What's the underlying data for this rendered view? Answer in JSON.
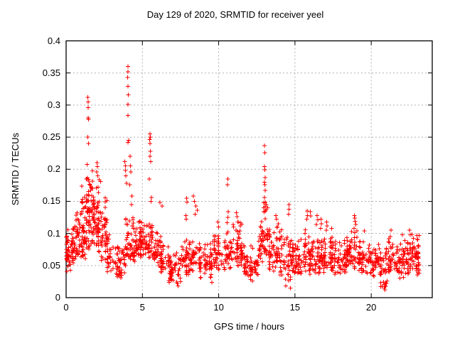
{
  "chart_data": {
    "type": "scatter",
    "title": "Day 129 of 2020, SRMTID for receiver yeel",
    "xlabel": "GPS time / hours",
    "ylabel": "SRMTID / TECUs",
    "xlim": [
      0,
      24
    ],
    "ylim": [
      0,
      0.4
    ],
    "xticks": [
      0,
      5,
      10,
      15,
      20
    ],
    "xtick_labels": [
      "0",
      "5",
      "10",
      "15",
      "20"
    ],
    "yticks": [
      0,
      0.05,
      0.1,
      0.15,
      0.2,
      0.25,
      0.3,
      0.35,
      0.4
    ],
    "ytick_labels": [
      "0",
      "0.05",
      "0.1",
      "0.15",
      "0.2",
      "0.25",
      "0.3",
      "0.35",
      "0.4"
    ],
    "grid": true,
    "grid_style": "dotted",
    "legend": "none",
    "marker": "plus",
    "marker_color": "#ff0000",
    "axis_color": "#000000",
    "grid_color": "#b0b0b0",
    "data_extent_hours": [
      0.02,
      23.15
    ],
    "seed": 1290520,
    "n_points_estimate": 1930,
    "density_profile": {
      "description": "Envelope of the dense scatter read from the plot: bins of [x_start_hour, x_end_hour, point_count, y_min_TECU, y_max_TECU]; baseline sits near 0.04-0.09 TECUs all day with activity peaks in hours 1-2 and around 4, 5.5, 13.",
      "bins": [
        [
          0.02,
          0.3,
          35,
          0.032,
          0.115
        ],
        [
          0.3,
          0.6,
          30,
          0.048,
          0.12
        ],
        [
          0.6,
          1.0,
          38,
          0.055,
          0.13
        ],
        [
          1.0,
          1.3,
          42,
          0.06,
          0.175
        ],
        [
          1.3,
          1.6,
          48,
          0.07,
          0.21
        ],
        [
          1.6,
          2.0,
          48,
          0.07,
          0.2
        ],
        [
          2.0,
          2.3,
          40,
          0.06,
          0.185
        ],
        [
          2.3,
          2.7,
          40,
          0.05,
          0.16
        ],
        [
          2.7,
          3.1,
          28,
          0.03,
          0.1
        ],
        [
          3.1,
          3.5,
          25,
          0.025,
          0.08
        ],
        [
          3.5,
          3.9,
          28,
          0.028,
          0.095
        ],
        [
          3.9,
          4.4,
          42,
          0.05,
          0.13
        ],
        [
          4.4,
          4.8,
          36,
          0.055,
          0.12
        ],
        [
          4.8,
          5.2,
          42,
          0.06,
          0.125
        ],
        [
          5.2,
          5.7,
          42,
          0.06,
          0.12
        ],
        [
          5.7,
          6.2,
          36,
          0.045,
          0.105
        ],
        [
          6.2,
          6.7,
          36,
          0.035,
          0.085
        ],
        [
          6.7,
          7.5,
          56,
          0.02,
          0.075
        ],
        [
          7.5,
          8.1,
          46,
          0.035,
          0.09
        ],
        [
          8.1,
          8.8,
          46,
          0.04,
          0.1
        ],
        [
          8.8,
          9.6,
          50,
          0.028,
          0.085
        ],
        [
          9.6,
          10.4,
          50,
          0.035,
          0.1
        ],
        [
          10.4,
          10.8,
          30,
          0.045,
          0.115
        ],
        [
          10.8,
          11.6,
          56,
          0.045,
          0.12
        ],
        [
          11.6,
          12.6,
          66,
          0.025,
          0.085
        ],
        [
          12.6,
          12.95,
          30,
          0.05,
          0.13
        ],
        [
          12.95,
          13.25,
          30,
          0.06,
          0.15
        ],
        [
          13.25,
          14.0,
          56,
          0.04,
          0.115
        ],
        [
          14.0,
          14.8,
          56,
          0.025,
          0.11
        ],
        [
          14.8,
          15.5,
          50,
          0.03,
          0.095
        ],
        [
          15.5,
          16.0,
          40,
          0.035,
          0.11
        ],
        [
          16.0,
          16.6,
          45,
          0.03,
          0.1
        ],
        [
          16.6,
          17.2,
          45,
          0.035,
          0.095
        ],
        [
          17.2,
          17.6,
          30,
          0.04,
          0.105
        ],
        [
          17.6,
          18.4,
          56,
          0.035,
          0.09
        ],
        [
          18.4,
          19.2,
          56,
          0.04,
          0.105
        ],
        [
          19.2,
          20.0,
          56,
          0.035,
          0.095
        ],
        [
          20.0,
          20.6,
          40,
          0.03,
          0.085
        ],
        [
          20.6,
          21.1,
          36,
          0.015,
          0.08
        ],
        [
          21.1,
          21.5,
          30,
          0.035,
          0.095
        ],
        [
          21.5,
          22.2,
          46,
          0.03,
          0.085
        ],
        [
          22.2,
          22.8,
          46,
          0.035,
          0.1
        ],
        [
          22.8,
          23.15,
          40,
          0.035,
          0.097
        ]
      ]
    },
    "outliers": [
      [
        0.72,
        0.132
      ],
      [
        1.42,
        0.312
      ],
      [
        1.44,
        0.305
      ],
      [
        1.45,
        0.296
      ],
      [
        1.44,
        0.28
      ],
      [
        1.47,
        0.278
      ],
      [
        1.43,
        0.25
      ],
      [
        1.46,
        0.24
      ],
      [
        2.02,
        0.21
      ],
      [
        2.05,
        0.204
      ],
      [
        2.0,
        0.196
      ],
      [
        2.08,
        0.19
      ],
      [
        3.85,
        0.212
      ],
      [
        3.88,
        0.205
      ],
      [
        3.9,
        0.198
      ],
      [
        3.92,
        0.19
      ],
      [
        3.95,
        0.178
      ],
      [
        4.05,
        0.36
      ],
      [
        4.06,
        0.352
      ],
      [
        4.04,
        0.343
      ],
      [
        4.05,
        0.329
      ],
      [
        4.07,
        0.316
      ],
      [
        4.05,
        0.301
      ],
      [
        4.06,
        0.284
      ],
      [
        4.1,
        0.245
      ],
      [
        4.05,
        0.242
      ],
      [
        4.2,
        0.22
      ],
      [
        4.22,
        0.205
      ],
      [
        4.25,
        0.196
      ],
      [
        4.18,
        0.176
      ],
      [
        4.3,
        0.158
      ],
      [
        4.28,
        0.145
      ],
      [
        5.5,
        0.255
      ],
      [
        5.52,
        0.25
      ],
      [
        5.48,
        0.246
      ],
      [
        5.5,
        0.24
      ],
      [
        5.53,
        0.228
      ],
      [
        5.5,
        0.22
      ],
      [
        5.55,
        0.212
      ],
      [
        5.45,
        0.185
      ],
      [
        5.6,
        0.156
      ],
      [
        5.58,
        0.15
      ],
      [
        6.15,
        0.148
      ],
      [
        6.3,
        0.143
      ],
      [
        7.3,
        0.022
      ],
      [
        7.35,
        0.018
      ],
      [
        7.9,
        0.155
      ],
      [
        7.93,
        0.149
      ],
      [
        7.85,
        0.128
      ],
      [
        7.88,
        0.122
      ],
      [
        8.35,
        0.158
      ],
      [
        8.4,
        0.15
      ],
      [
        8.5,
        0.143
      ],
      [
        8.6,
        0.136
      ],
      [
        8.45,
        0.13
      ],
      [
        9.55,
        0.024
      ],
      [
        9.95,
        0.118
      ],
      [
        10.0,
        0.11
      ],
      [
        10.6,
        0.185
      ],
      [
        10.58,
        0.176
      ],
      [
        10.62,
        0.134
      ],
      [
        10.6,
        0.125
      ],
      [
        10.56,
        0.117
      ],
      [
        11.15,
        0.132
      ],
      [
        11.2,
        0.126
      ],
      [
        11.25,
        0.118
      ],
      [
        12.2,
        0.026
      ],
      [
        13.0,
        0.237
      ],
      [
        13.02,
        0.226
      ],
      [
        13.0,
        0.204
      ],
      [
        13.03,
        0.199
      ],
      [
        13.05,
        0.187
      ],
      [
        13.0,
        0.18
      ],
      [
        13.02,
        0.176
      ],
      [
        13.04,
        0.167
      ],
      [
        13.0,
        0.156
      ],
      [
        13.05,
        0.149
      ],
      [
        12.95,
        0.14
      ],
      [
        13.08,
        0.135
      ],
      [
        13.75,
        0.128
      ],
      [
        13.8,
        0.122
      ],
      [
        13.9,
        0.115
      ],
      [
        13.85,
        0.11
      ],
      [
        14.4,
        0.018
      ],
      [
        14.7,
        0.015
      ],
      [
        14.6,
        0.145
      ],
      [
        14.62,
        0.138
      ],
      [
        14.58,
        0.13
      ],
      [
        15.8,
        0.135
      ],
      [
        15.82,
        0.128
      ],
      [
        15.78,
        0.122
      ],
      [
        16.0,
        0.134
      ],
      [
        16.02,
        0.127
      ],
      [
        16.45,
        0.128
      ],
      [
        16.5,
        0.121
      ],
      [
        16.4,
        0.114
      ],
      [
        16.7,
        0.122
      ],
      [
        16.72,
        0.115
      ],
      [
        16.68,
        0.108
      ],
      [
        17.07,
        0.118
      ],
      [
        17.1,
        0.112
      ],
      [
        17.05,
        0.105
      ],
      [
        17.4,
        0.108
      ],
      [
        18.9,
        0.128
      ],
      [
        18.92,
        0.124
      ],
      [
        18.95,
        0.119
      ],
      [
        19.0,
        0.114
      ],
      [
        18.88,
        0.108
      ],
      [
        19.05,
        0.104
      ],
      [
        19.55,
        0.104
      ],
      [
        20.85,
        0.015
      ],
      [
        20.9,
        0.012
      ],
      [
        21.0,
        0.022
      ],
      [
        21.25,
        0.095
      ],
      [
        21.3,
        0.105
      ],
      [
        22.05,
        0.098
      ],
      [
        22.5,
        0.105
      ],
      [
        22.55,
        0.098
      ],
      [
        23.0,
        0.097
      ],
      [
        23.05,
        0.09
      ]
    ]
  }
}
